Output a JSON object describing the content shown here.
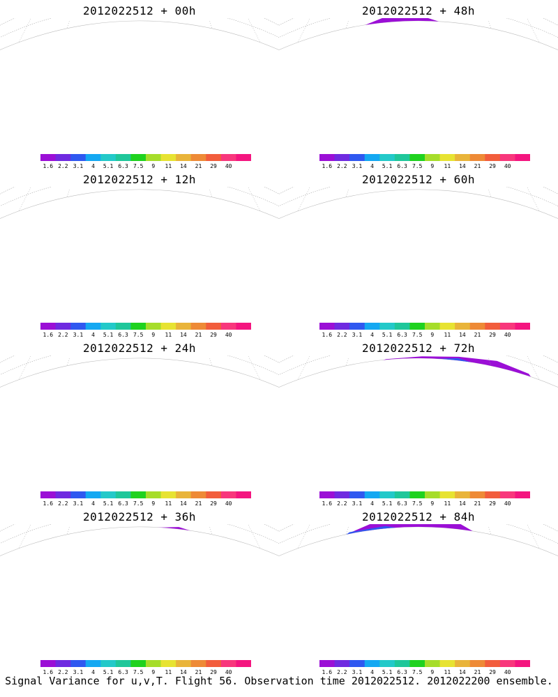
{
  "panels": [
    {
      "title": "2012022512 + 00h",
      "intensity": 0.3,
      "hot": true,
      "circle": false
    },
    {
      "title": "2012022512 + 48h",
      "intensity": 0.7,
      "hot": false,
      "circle": false
    },
    {
      "title": "2012022512 + 12h",
      "intensity": 0.45,
      "hot": true,
      "circle": true
    },
    {
      "title": "2012022512 + 60h",
      "intensity": 0.75,
      "hot": false,
      "circle": false
    },
    {
      "title": "2012022512 + 24h",
      "intensity": 0.55,
      "hot": true,
      "circle": false
    },
    {
      "title": "2012022512 + 72h",
      "intensity": 0.8,
      "hot": false,
      "circle": false
    },
    {
      "title": "2012022512 + 36h",
      "intensity": 0.62,
      "hot": false,
      "circle": true
    },
    {
      "title": "2012022512 + 84h",
      "intensity": 0.85,
      "hot": false,
      "circle": false
    }
  ],
  "colorbar": {
    "ticks": [
      "1.6",
      "2.2",
      "3.1",
      "4",
      "5.1",
      "6.3",
      "7.5",
      "9",
      "11",
      "14",
      "21",
      "29",
      "40"
    ],
    "colors": [
      "#9b0fd6",
      "#6f2ae0",
      "#2f58f0",
      "#14a8f2",
      "#23c9c9",
      "#1fc79a",
      "#1fd21f",
      "#a6dd2a",
      "#e7e332",
      "#e9b43a",
      "#ee8a36",
      "#f25d3c",
      "#f8377c",
      "#f4157f"
    ]
  },
  "footer": "Signal Variance for u,v,T. Flight 56. Observation time 2012022512. 2012022200 ensemble."
}
